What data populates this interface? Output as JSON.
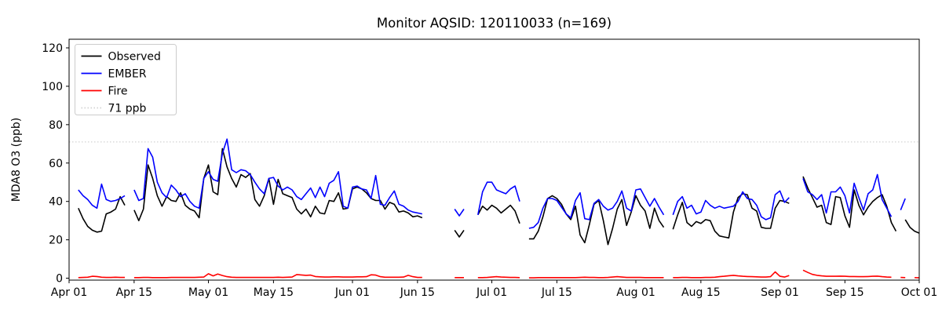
{
  "chart_data": {
    "type": "line",
    "title": "Monitor AQSID: 120110033 (n=169)",
    "xlabel": "",
    "ylabel": "MDA8 O3 (ppb)",
    "ylim": [
      -1,
      124.5
    ],
    "yticks": [
      0,
      20,
      40,
      60,
      80,
      100,
      120
    ],
    "x_unit": "day index from Apr 01",
    "x_range_days": [
      0,
      183
    ],
    "xticks": [
      {
        "day": 0,
        "label": "Apr 01"
      },
      {
        "day": 14,
        "label": "Apr 15"
      },
      {
        "day": 30,
        "label": "May 01"
      },
      {
        "day": 44,
        "label": "May 15"
      },
      {
        "day": 61,
        "label": "Jun 01"
      },
      {
        "day": 75,
        "label": "Jun 15"
      },
      {
        "day": 91,
        "label": "Jul 01"
      },
      {
        "day": 105,
        "label": "Jul 15"
      },
      {
        "day": 122,
        "label": "Aug 01"
      },
      {
        "day": 136,
        "label": "Aug 15"
      },
      {
        "day": 153,
        "label": "Sep 01"
      },
      {
        "day": 167,
        "label": "Sep 15"
      },
      {
        "day": 183,
        "label": "Oct 01"
      }
    ],
    "grid": false,
    "threshold": {
      "label": "71 ppb",
      "value": 71,
      "color": "#d3d3d3",
      "style": "dotted"
    },
    "legend": {
      "position": "upper-left",
      "entries": [
        {
          "label": "Observed",
          "color": "#000000",
          "style": "solid"
        },
        {
          "label": "EMBER",
          "color": "#0000ff",
          "style": "solid"
        },
        {
          "label": "Fire",
          "color": "#ff0000",
          "style": "solid"
        },
        {
          "label": "71 ppb",
          "color": "#d3d3d3",
          "style": "dotted"
        }
      ]
    },
    "series": [
      {
        "name": "Observed",
        "color": "#000000",
        "values": [
          null,
          null,
          36.5,
          31,
          27,
          25,
          24,
          24.5,
          33.5,
          34.5,
          36,
          42.5,
          38,
          null,
          35.5,
          30,
          36,
          59,
          52,
          43,
          37.5,
          42.5,
          40.5,
          40,
          44.5,
          38,
          36,
          35,
          31.5,
          52,
          59,
          45,
          43.5,
          67.5,
          58,
          52,
          47.5,
          54,
          52.5,
          54.5,
          41,
          37.5,
          43,
          52,
          38.5,
          51.5,
          44,
          43,
          42,
          36,
          33.5,
          36,
          32,
          37.5,
          34,
          33.5,
          40.5,
          40,
          44.5,
          36,
          36.5,
          46.5,
          47.5,
          46.5,
          44.5,
          41.5,
          40.5,
          40.5,
          36,
          39.5,
          38.5,
          34.5,
          35,
          34,
          32,
          32.5,
          31.5,
          null,
          null,
          null,
          null,
          null,
          null,
          25,
          21.5,
          25,
          null,
          null,
          33,
          37.5,
          35.5,
          38,
          36.5,
          34,
          36,
          38,
          35,
          28.5,
          null,
          20.5,
          20.5,
          24.5,
          32,
          41.5,
          43,
          41.5,
          38.5,
          33.5,
          30.5,
          37.5,
          22.5,
          18.5,
          28,
          38.5,
          40.5,
          30,
          17.5,
          26,
          36,
          41,
          27.5,
          34.5,
          43,
          38,
          35,
          26,
          36.5,
          30,
          26.5,
          null,
          25.5,
          33,
          39.5,
          29,
          27,
          29.5,
          28.5,
          30.5,
          30,
          24.5,
          22,
          21.5,
          21,
          34.5,
          42,
          44,
          43.5,
          36.5,
          35,
          26.5,
          26,
          26,
          36.5,
          40.5,
          40,
          39,
          null,
          null,
          53,
          47,
          42,
          37,
          38,
          29,
          28,
          42.5,
          42,
          32.5,
          26.5,
          46,
          38,
          33,
          37,
          40,
          42,
          43.5,
          37.5,
          29,
          24.5,
          null,
          30.5,
          26.5,
          24.5,
          23.5
        ]
      },
      {
        "name": "EMBER",
        "color": "#0000ff",
        "values": [
          null,
          null,
          46,
          43,
          41,
          38,
          36.5,
          49,
          41,
          40,
          40.5,
          41.5,
          43,
          null,
          46,
          40.5,
          41.5,
          67.5,
          63,
          50,
          44.5,
          42,
          48.5,
          46,
          42.5,
          44,
          40,
          37.5,
          36.5,
          52,
          55.5,
          51.5,
          50.5,
          65,
          72.5,
          56.5,
          55,
          56.5,
          56,
          54,
          50,
          46.5,
          44,
          52,
          52.5,
          48,
          46,
          47.5,
          46,
          42.5,
          41,
          44,
          47,
          42,
          47.5,
          42.5,
          49.5,
          51,
          55.5,
          37.5,
          36.5,
          47.5,
          48,
          46.5,
          46,
          41.5,
          53.5,
          38.5,
          38,
          42,
          45.5,
          38.5,
          37.5,
          35.5,
          34.5,
          34,
          33.5,
          null,
          null,
          null,
          null,
          null,
          null,
          36,
          32.5,
          36,
          null,
          null,
          33,
          45,
          50,
          50,
          46,
          45,
          44,
          46.5,
          48,
          40,
          null,
          26,
          26.5,
          29,
          36.5,
          41.5,
          41.5,
          40.5,
          37,
          33.5,
          31.5,
          40.5,
          44.5,
          31,
          30.5,
          39,
          41,
          37.5,
          35.5,
          36.5,
          40,
          45.5,
          36.5,
          35,
          46,
          46.5,
          42,
          37.5,
          41.5,
          37,
          33,
          null,
          33,
          40,
          42.5,
          36.5,
          38,
          33.5,
          34.5,
          40.5,
          38,
          36.5,
          37.5,
          36.5,
          37,
          37.5,
          40,
          45,
          41.5,
          41,
          38,
          32,
          30.5,
          31.5,
          43.5,
          45.5,
          39.5,
          42,
          null,
          null,
          52,
          45,
          43.5,
          41,
          43.5,
          34,
          45,
          45,
          47.5,
          43,
          34,
          49.5,
          42,
          35.5,
          44,
          46,
          54,
          41,
          36.5,
          32,
          null,
          35.5,
          41.5,
          null,
          null,
          null
        ]
      },
      {
        "name": "Fire",
        "color": "#ff0000",
        "values": [
          null,
          null,
          0.3,
          0.4,
          0.5,
          1,
          0.9,
          0.5,
          0.4,
          0.4,
          0.5,
          0.4,
          0.4,
          null,
          0.3,
          0.3,
          0.4,
          0.4,
          0.3,
          0.3,
          0.3,
          0.3,
          0.4,
          0.4,
          0.4,
          0.4,
          0.4,
          0.4,
          0.5,
          0.6,
          2.3,
          1.2,
          2.2,
          1.4,
          0.8,
          0.5,
          0.4,
          0.4,
          0.4,
          0.4,
          0.4,
          0.4,
          0.4,
          0.4,
          0.4,
          0.5,
          0.4,
          0.5,
          0.6,
          1.9,
          1.7,
          1.5,
          1.6,
          0.9,
          0.7,
          0.6,
          0.6,
          0.7,
          0.7,
          0.6,
          0.6,
          0.6,
          0.7,
          0.7,
          0.8,
          1.8,
          1.6,
          0.8,
          0.5,
          0.5,
          0.5,
          0.5,
          0.6,
          1.5,
          0.8,
          0.4,
          0.4,
          null,
          null,
          null,
          null,
          null,
          null,
          0.3,
          0.3,
          0.3,
          null,
          null,
          0.3,
          0.3,
          0.4,
          0.6,
          0.8,
          0.6,
          0.5,
          0.4,
          0.4,
          0.3,
          null,
          0.2,
          0.2,
          0.3,
          0.3,
          0.3,
          0.3,
          0.3,
          0.3,
          0.3,
          0.3,
          0.3,
          0.4,
          0.5,
          0.4,
          0.4,
          0.3,
          0.3,
          0.4,
          0.6,
          0.8,
          0.6,
          0.4,
          0.4,
          0.4,
          0.4,
          0.3,
          0.3,
          0.3,
          0.3,
          0.3,
          null,
          0.3,
          0.3,
          0.4,
          0.4,
          0.3,
          0.3,
          0.3,
          0.4,
          0.4,
          0.5,
          0.8,
          1,
          1.3,
          1.5,
          1.2,
          1,
          0.9,
          0.8,
          0.7,
          0.6,
          0.6,
          0.8,
          3.3,
          1,
          0.6,
          1.4,
          null,
          null,
          4.2,
          3,
          2,
          1.5,
          1.2,
          1,
          1,
          1,
          1.1,
          1,
          0.9,
          0.9,
          0.8,
          0.8,
          0.9,
          1,
          1.1,
          0.8,
          0.6,
          0.5,
          null,
          0.4,
          0.3,
          null,
          0.3,
          0.2
        ]
      }
    ]
  }
}
